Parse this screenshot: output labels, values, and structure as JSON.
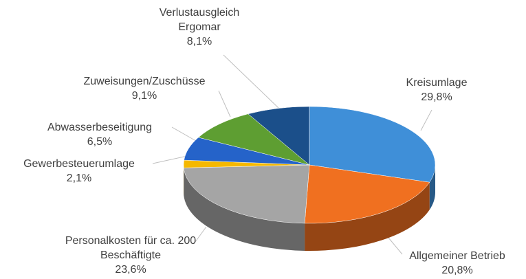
{
  "chart_data": {
    "type": "pie3d",
    "categories": [
      "Kreisumlage",
      "Allgemeiner Betrieb",
      "Personalkosten für ca. 200 Beschäftigte",
      "Gewerbesteuerumlage",
      "Abwasserbeseitigung",
      "Zuweisungen/Zuschüsse",
      "Verlustausgleich Ergomar"
    ],
    "values": [
      29.8,
      20.8,
      23.6,
      2.1,
      6.5,
      9.1,
      8.1
    ],
    "value_labels": [
      "29,8%",
      "20,8%",
      "23,6%",
      "2,1%",
      "6,5%",
      "9,1%",
      "8,1%"
    ],
    "colors": [
      "#3f8fd8",
      "#f07020",
      "#a5a5a5",
      "#f5b800",
      "#2563c9",
      "#5e9e32",
      "#1b4f8a"
    ]
  }
}
